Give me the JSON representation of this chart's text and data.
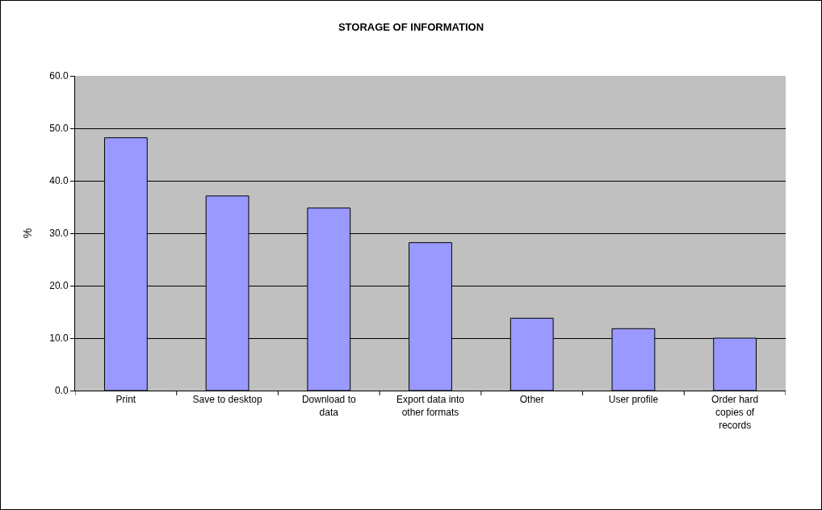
{
  "chart_data": {
    "type": "bar",
    "title": "STORAGE OF INFORMATION",
    "ylabel": "%",
    "categories": [
      "Print",
      "Save to desktop",
      "Download to\ndata",
      "Export data into\nother formats",
      "Other",
      "User profile",
      "Order hard\ncopies of\nrecords"
    ],
    "values": [
      48.2,
      37.1,
      34.8,
      28.2,
      13.8,
      11.8,
      10.0
    ],
    "color": "#9999ff",
    "ylim": [
      0,
      60
    ],
    "yticks": [
      {
        "value": 0,
        "label": "0.0"
      },
      {
        "value": 10,
        "label": "10.0"
      },
      {
        "value": 20,
        "label": "20.0"
      },
      {
        "value": 30,
        "label": "30.0"
      },
      {
        "value": 40,
        "label": "40.0"
      },
      {
        "value": 50,
        "label": "50.0"
      },
      {
        "value": 60,
        "label": "60.0"
      }
    ],
    "grid": "y"
  }
}
